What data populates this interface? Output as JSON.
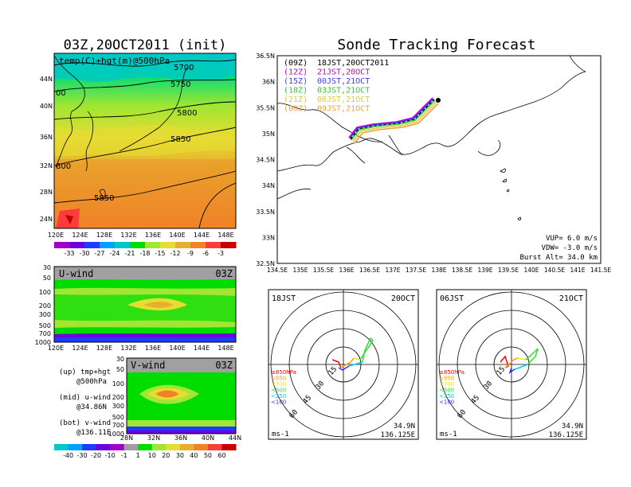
{
  "left_title": "03Z,20OCT2011 (init)",
  "right_title": "Sonde Tracking Forecast",
  "map500": {
    "label": "temp(C)+hgt(m)@500hPa",
    "lon_ticks": [
      "120E",
      "124E",
      "128E",
      "132E",
      "136E",
      "140E",
      "144E",
      "148E"
    ],
    "lat_ticks": [
      "44N",
      "40N",
      "36N",
      "32N",
      "28N",
      "24N"
    ],
    "contour_labels": [
      "5700",
      "5750",
      "5800",
      "5850",
      "5850",
      "800",
      "00"
    ],
    "colorbar": {
      "labels": [
        "-33",
        "-30",
        "-27",
        "-24",
        "-21",
        "-18",
        "-15",
        "-12",
        "-9",
        "-6",
        "-3"
      ],
      "colors": [
        "#a000c8",
        "#6e00dc",
        "#1e3cff",
        "#00a0ff",
        "#00c8c8",
        "#00dc00",
        "#a0e632",
        "#e6dc32",
        "#e6af2d",
        "#f08228",
        "#fa3c3c",
        "#c80000"
      ]
    }
  },
  "uwind": {
    "label": "U-wind",
    "time": "03Z",
    "p_ticks": [
      "30",
      "50",
      "100",
      "200",
      "300",
      "500",
      "700",
      "1000"
    ],
    "lon_ticks": [
      "120E",
      "124E",
      "128E",
      "132E",
      "136E",
      "140E",
      "144E",
      "148E"
    ]
  },
  "vwind": {
    "label": "V-wind",
    "time": "03Z",
    "p_ticks": [
      "30",
      "50",
      "100",
      "200",
      "300",
      "500",
      "700",
      "1000"
    ],
    "lat_ticks": [
      "28N",
      "32N",
      "36N",
      "40N",
      "44N"
    ],
    "colorbar": {
      "labels": [
        "-40",
        "-30",
        "-20",
        "-10",
        "-1",
        "1",
        "10",
        "20",
        "30",
        "40",
        "50",
        "60"
      ],
      "colors": [
        "#00c8c8",
        "#00a0ff",
        "#1e3cff",
        "#6e00dc",
        "#a000c8",
        "#a0a0a0",
        "#00dc00",
        "#a0e632",
        "#e6dc32",
        "#e6af2d",
        "#f08228",
        "#fa3c3c",
        "#c80000"
      ]
    }
  },
  "legend_notes": [
    {
      "title": "(up) tmp+hgt",
      "sub": "@500hPa"
    },
    {
      "title": "(mid) u-wind",
      "sub": "@34.86N"
    },
    {
      "title": "(bot) v-wind",
      "sub": "@136.11E"
    }
  ],
  "tracking": {
    "lat_ticks": [
      "36.5N",
      "36N",
      "35.5N",
      "35N",
      "34.5N",
      "34N",
      "33.5N",
      "33N",
      "32.5N"
    ],
    "lon_ticks": [
      "134.5E",
      "135E",
      "135.5E",
      "136E",
      "136.5E",
      "137E",
      "137.5E",
      "138E",
      "138.5E",
      "139E",
      "139.5E",
      "140E",
      "140.5E",
      "141E",
      "141.5E"
    ],
    "runs": [
      {
        "tag": "(09Z)",
        "label": "18JST,20OCT2011",
        "color": "#000000"
      },
      {
        "tag": "(12Z)",
        "label": "21JST,20OCT",
        "color": "#c800c8"
      },
      {
        "tag": "(15Z)",
        "label": "00JST,21OCT",
        "color": "#3c3cff"
      },
      {
        "tag": "(18Z)",
        "label": "03JST,21OCT",
        "color": "#32c832"
      },
      {
        "tag": "(21Z)",
        "label": "06JST,21OCT",
        "color": "#e6c832"
      },
      {
        "tag": "(00Z)",
        "label": "09JST,21OCT",
        "color": "#f0a03c"
      }
    ],
    "info": [
      "VUP= 6.0 m/s",
      "VDW= -3.0 m/s",
      "Burst Alt= 34.0 km"
    ]
  },
  "hodo_left": {
    "time": "18JST",
    "date": "20OCT",
    "ring_labels": [
      "15",
      "30",
      "45",
      "60"
    ],
    "unit": "ms-1",
    "lat": "34.9N",
    "lon": "136.125E"
  },
  "hodo_right": {
    "time": "06JST",
    "date": "21OCT",
    "ring_labels": [
      "15",
      "30",
      "45",
      "60"
    ],
    "unit": "ms-1",
    "lat": "34.9N",
    "lon": "136.125E"
  },
  "hodo_levels": [
    {
      "label": "≥850hPa",
      "color": "#ff0000"
    },
    {
      "label": "<850",
      "color": "#ffa000"
    },
    {
      "label": "<700",
      "color": "#e6e632"
    },
    {
      "label": "<500",
      "color": "#32dc32"
    },
    {
      "label": "<250",
      "color": "#00c8ff"
    },
    {
      "label": "<100",
      "color": "#3232ff"
    }
  ]
}
